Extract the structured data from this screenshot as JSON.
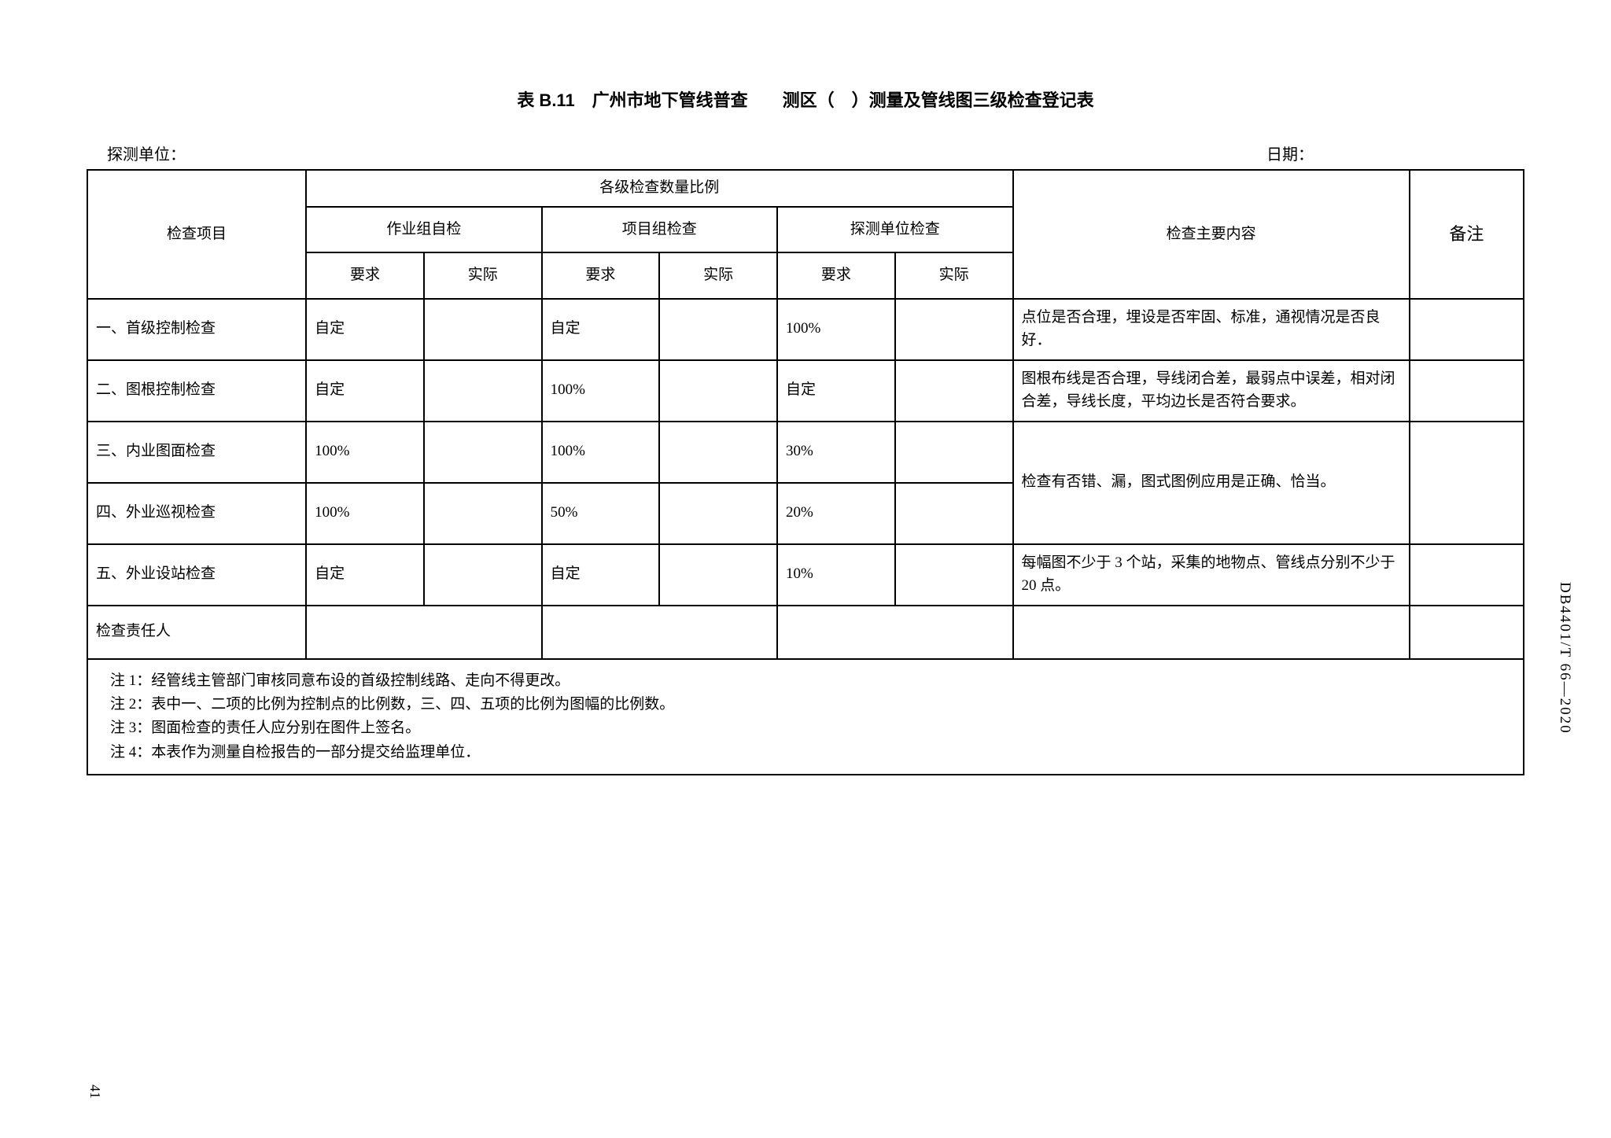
{
  "title": "表 B.11　广州市地下管线普查　　测区（　）测量及管线图三级检查登记表",
  "header": {
    "left": "探测单位：",
    "right": "日期："
  },
  "columns": {
    "item": "检查项目",
    "ratio_group": "各级检查数量比例",
    "content": "检查主要内容",
    "remark": "备注",
    "group1": "作业组自检",
    "group2": "项目组检查",
    "group3": "探测单位检查",
    "req": "要求",
    "act": "实际"
  },
  "rows": [
    {
      "item": "一、首级控制检查",
      "g1req": "自定",
      "g1act": "",
      "g2req": "自定",
      "g2act": "",
      "g3req": "100%",
      "g3act": "",
      "content": "点位是否合理，埋设是否牢固、标准，通视情况是否良好．",
      "remark": ""
    },
    {
      "item": "二、图根控制检查",
      "g1req": "自定",
      "g1act": "",
      "g2req": "100%",
      "g2act": "",
      "g3req": "自定",
      "g3act": "",
      "content": "图根布线是否合理，导线闭合差，最弱点中误差，相对闭合差，导线长度，平均边长是否符合要求。",
      "remark": ""
    },
    {
      "item": "三、内业图面检查",
      "g1req": "100%",
      "g1act": "",
      "g2req": "100%",
      "g2act": "",
      "g3req": "30%",
      "g3act": "",
      "content": "检查有否错、漏，图式图例应用是正确、恰当。",
      "remark": ""
    },
    {
      "item": "四、外业巡视检查",
      "g1req": "100%",
      "g1act": "",
      "g2req": "50%",
      "g2act": "",
      "g3req": "20%",
      "g3act": "",
      "content": "",
      "remark": ""
    },
    {
      "item": "五、外业设站检查",
      "g1req": "自定",
      "g1act": "",
      "g2req": "自定",
      "g2act": "",
      "g3req": "10%",
      "g3act": "",
      "content": "每幅图不少于 3 个站，采集的地物点、管线点分别不少于 20 点。",
      "remark": ""
    }
  ],
  "responsible_label": "检查责任人",
  "notes": [
    "注 1：经管线主管部门审核同意布设的首级控制线路、走向不得更改。",
    "注 2：表中一、二项的比例为控制点的比例数，三、四、五项的比例为图幅的比例数。",
    "注 3：图面检查的责任人应分别在图件上签名。",
    "注 4：本表作为测量自检报告的一部分提交给监理单位．"
  ],
  "side_code": "DB4401/T 66—2020",
  "page_number": "41"
}
